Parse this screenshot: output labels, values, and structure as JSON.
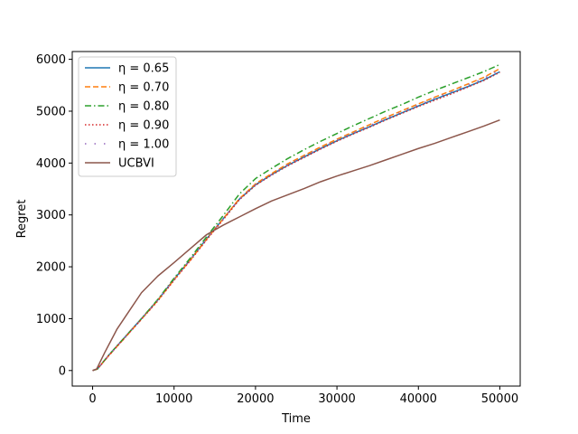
{
  "chart_data": {
    "type": "line",
    "title": "",
    "xlabel": "Time",
    "ylabel": "Regret",
    "xlim": [
      -2500,
      52500
    ],
    "ylim": [
      -300,
      6150
    ],
    "xticks": [
      0,
      10000,
      20000,
      30000,
      40000,
      50000
    ],
    "yticks": [
      0,
      1000,
      2000,
      3000,
      4000,
      5000,
      6000
    ],
    "grid": false,
    "legend_position": "top-left",
    "series": [
      {
        "name": "η = 0.65",
        "color": "#1f77b4",
        "dash": "solid",
        "points": [
          [
            0,
            0
          ],
          [
            600,
            30
          ],
          [
            2000,
            300
          ],
          [
            4000,
            650
          ],
          [
            6000,
            1000
          ],
          [
            8000,
            1360
          ],
          [
            10000,
            1760
          ],
          [
            12000,
            2140
          ],
          [
            14000,
            2540
          ],
          [
            16000,
            2920
          ],
          [
            18000,
            3300
          ],
          [
            20000,
            3580
          ],
          [
            22000,
            3780
          ],
          [
            24000,
            3960
          ],
          [
            26000,
            4120
          ],
          [
            28000,
            4280
          ],
          [
            30000,
            4430
          ],
          [
            32000,
            4570
          ],
          [
            34000,
            4700
          ],
          [
            36000,
            4840
          ],
          [
            38000,
            4970
          ],
          [
            40000,
            5100
          ],
          [
            42000,
            5230
          ],
          [
            44000,
            5350
          ],
          [
            46000,
            5470
          ],
          [
            48000,
            5600
          ],
          [
            50000,
            5760
          ]
        ]
      },
      {
        "name": "η = 0.70",
        "color": "#ff7f0e",
        "dash": "dashed",
        "points": [
          [
            0,
            0
          ],
          [
            600,
            30
          ],
          [
            2000,
            290
          ],
          [
            4000,
            640
          ],
          [
            6000,
            990
          ],
          [
            8000,
            1350
          ],
          [
            10000,
            1750
          ],
          [
            12000,
            2130
          ],
          [
            14000,
            2530
          ],
          [
            16000,
            2920
          ],
          [
            18000,
            3310
          ],
          [
            20000,
            3600
          ],
          [
            22000,
            3800
          ],
          [
            24000,
            3990
          ],
          [
            26000,
            4150
          ],
          [
            28000,
            4310
          ],
          [
            30000,
            4460
          ],
          [
            32000,
            4600
          ],
          [
            34000,
            4740
          ],
          [
            36000,
            4880
          ],
          [
            38000,
            5010
          ],
          [
            40000,
            5140
          ],
          [
            42000,
            5270
          ],
          [
            44000,
            5390
          ],
          [
            46000,
            5520
          ],
          [
            48000,
            5650
          ],
          [
            50000,
            5820
          ]
        ]
      },
      {
        "name": "η = 0.80",
        "color": "#2ca02c",
        "dash": "dashdot",
        "points": [
          [
            0,
            0
          ],
          [
            600,
            30
          ],
          [
            2000,
            300
          ],
          [
            4000,
            650
          ],
          [
            6000,
            1000
          ],
          [
            8000,
            1370
          ],
          [
            10000,
            1780
          ],
          [
            12000,
            2170
          ],
          [
            14000,
            2580
          ],
          [
            16000,
            2980
          ],
          [
            18000,
            3400
          ],
          [
            20000,
            3700
          ],
          [
            22000,
            3900
          ],
          [
            24000,
            4090
          ],
          [
            26000,
            4260
          ],
          [
            28000,
            4420
          ],
          [
            30000,
            4570
          ],
          [
            32000,
            4720
          ],
          [
            34000,
            4860
          ],
          [
            36000,
            5000
          ],
          [
            38000,
            5130
          ],
          [
            40000,
            5270
          ],
          [
            42000,
            5400
          ],
          [
            44000,
            5520
          ],
          [
            46000,
            5640
          ],
          [
            48000,
            5760
          ],
          [
            50000,
            5900
          ]
        ]
      },
      {
        "name": "η = 0.90",
        "color": "#d62728",
        "dash": "dotted",
        "points": [
          [
            0,
            0
          ],
          [
            600,
            30
          ],
          [
            2000,
            290
          ],
          [
            4000,
            640
          ],
          [
            6000,
            990
          ],
          [
            8000,
            1340
          ],
          [
            10000,
            1740
          ],
          [
            12000,
            2120
          ],
          [
            14000,
            2520
          ],
          [
            16000,
            2900
          ],
          [
            18000,
            3290
          ],
          [
            20000,
            3570
          ],
          [
            22000,
            3770
          ],
          [
            24000,
            3950
          ],
          [
            26000,
            4110
          ],
          [
            28000,
            4270
          ],
          [
            30000,
            4420
          ],
          [
            32000,
            4560
          ],
          [
            34000,
            4690
          ],
          [
            36000,
            4830
          ],
          [
            38000,
            4960
          ],
          [
            40000,
            5090
          ],
          [
            42000,
            5210
          ],
          [
            44000,
            5330
          ],
          [
            46000,
            5460
          ],
          [
            48000,
            5590
          ],
          [
            50000,
            5750
          ]
        ]
      },
      {
        "name": "η = 1.00",
        "color": "#9467bd",
        "dash": "sparse-dotted",
        "points": [
          [
            0,
            0
          ],
          [
            600,
            30
          ],
          [
            2000,
            295
          ],
          [
            4000,
            645
          ],
          [
            6000,
            995
          ],
          [
            8000,
            1355
          ],
          [
            10000,
            1755
          ],
          [
            12000,
            2135
          ],
          [
            14000,
            2535
          ],
          [
            16000,
            2915
          ],
          [
            18000,
            3305
          ],
          [
            20000,
            3585
          ],
          [
            22000,
            3785
          ],
          [
            24000,
            3970
          ],
          [
            26000,
            4130
          ],
          [
            28000,
            4290
          ],
          [
            30000,
            4440
          ],
          [
            32000,
            4580
          ],
          [
            34000,
            4720
          ],
          [
            36000,
            4860
          ],
          [
            38000,
            4990
          ],
          [
            40000,
            5120
          ],
          [
            42000,
            5250
          ],
          [
            44000,
            5370
          ],
          [
            46000,
            5500
          ],
          [
            48000,
            5630
          ],
          [
            50000,
            5800
          ]
        ]
      },
      {
        "name": "UCBVI",
        "color": "#8c564b",
        "dash": "solid",
        "points": [
          [
            0,
            0
          ],
          [
            500,
            30
          ],
          [
            1500,
            350
          ],
          [
            3000,
            800
          ],
          [
            4500,
            1150
          ],
          [
            6000,
            1500
          ],
          [
            8000,
            1820
          ],
          [
            10000,
            2080
          ],
          [
            12000,
            2350
          ],
          [
            14000,
            2620
          ],
          [
            16000,
            2800
          ],
          [
            18000,
            2960
          ],
          [
            20000,
            3120
          ],
          [
            22000,
            3270
          ],
          [
            24000,
            3390
          ],
          [
            26000,
            3510
          ],
          [
            28000,
            3640
          ],
          [
            30000,
            3750
          ],
          [
            32000,
            3850
          ],
          [
            34000,
            3950
          ],
          [
            36000,
            4060
          ],
          [
            38000,
            4170
          ],
          [
            40000,
            4280
          ],
          [
            42000,
            4380
          ],
          [
            44000,
            4490
          ],
          [
            46000,
            4600
          ],
          [
            48000,
            4710
          ],
          [
            50000,
            4830
          ]
        ]
      }
    ]
  }
}
